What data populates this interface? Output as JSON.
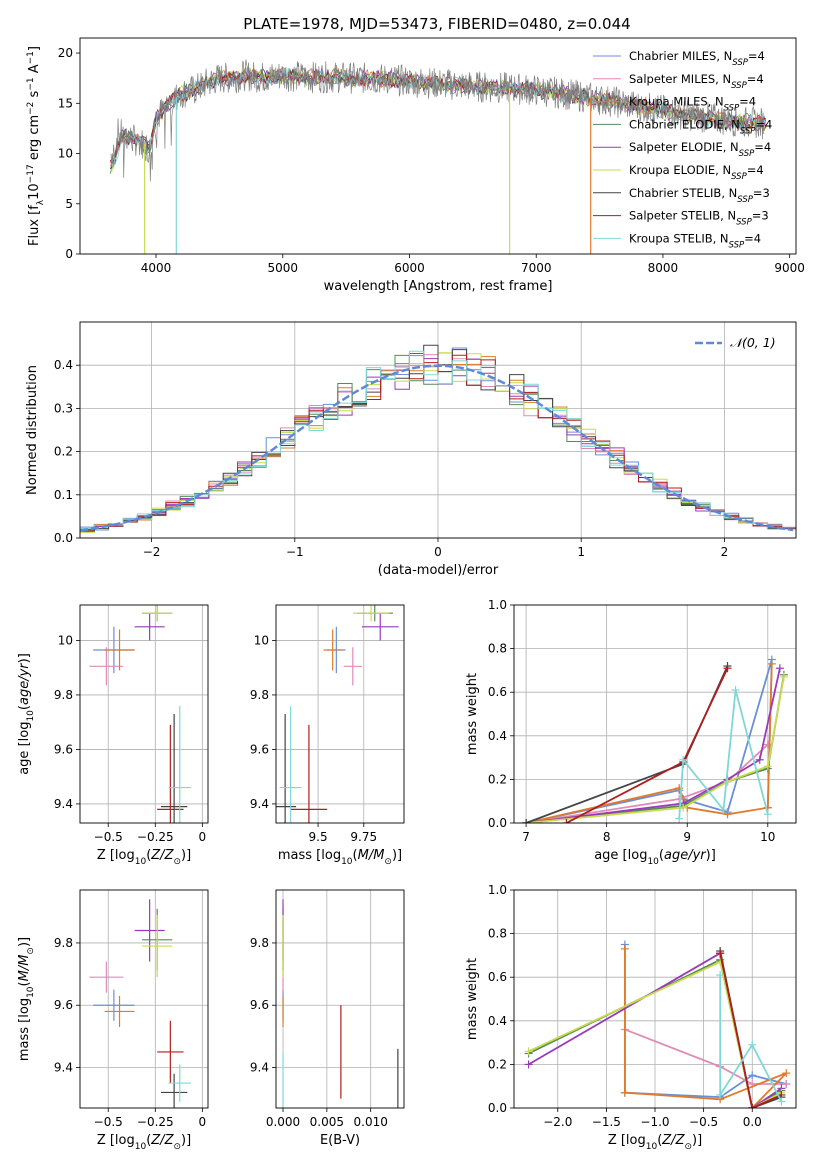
{
  "figure": {
    "title": "PLATE=1978, MJD=53473, FIBERID=0480, z=0.044"
  },
  "colors": {
    "Chabrier MILES": "#6a8fd8",
    "Salpeter MILES": "#e08bb6",
    "Kroupa MILES": "#e07b2c",
    "Chabrier ELODIE": "#5a8a5a",
    "Salpeter ELODIE": "#9a3ab8",
    "Kroupa ELODIE": "#c8dc4e",
    "Chabrier STELIB": "#444444",
    "Salpeter STELIB": "#b01e1e",
    "Kroupa STELIB": "#7fd8d8",
    "data": "#808080",
    "normal": "#5b8bd8"
  },
  "chart_data": [
    {
      "id": "spectrum",
      "type": "line",
      "title": "PLATE=1978, MJD=53473, FIBERID=0480, z=0.044",
      "xlabel": "wavelength [Angstrom, rest frame]",
      "ylabel": "Flux [f_λ 10^-17 erg cm^-2 s^-1 A^-1]",
      "xlim": [
        3400,
        9050
      ],
      "ylim": [
        0,
        21.5
      ],
      "xticks": [
        4000,
        5000,
        6000,
        7000,
        8000,
        9000
      ],
      "yticks": [
        0,
        5,
        10,
        15,
        20
      ],
      "legend_position": "top-right",
      "x": [
        3650,
        3700,
        3800,
        3900,
        3950,
        4000,
        4100,
        4200,
        4300,
        4400,
        4500,
        4600,
        4700,
        4800,
        4900,
        5000,
        5200,
        5400,
        5600,
        5800,
        6000,
        6200,
        6400,
        6600,
        6800,
        7000,
        7200,
        7400,
        7600,
        7800,
        8000,
        8200,
        8400,
        8600,
        8800
      ],
      "y": [
        10.0,
        12.0,
        11.5,
        11.0,
        10.5,
        13.5,
        15.0,
        16.0,
        16.3,
        17.0,
        17.5,
        17.5,
        17.8,
        17.6,
        17.6,
        17.8,
        17.6,
        17.6,
        17.5,
        17.4,
        17.2,
        17.0,
        16.8,
        16.6,
        16.5,
        16.3,
        16.0,
        15.6,
        15.2,
        14.7,
        14.3,
        13.8,
        13.5,
        13.2,
        13.0
      ],
      "series": [
        {
          "name": "Chabrier MILES, N_SSP=4",
          "label_main": "Chabrier MILES, N",
          "label_sub": "SSP",
          "label_tail": "=4"
        },
        {
          "name": "Salpeter MILES, N_SSP=4",
          "label_main": "Salpeter MILES, N",
          "label_sub": "SSP",
          "label_tail": "=4"
        },
        {
          "name": "Kroupa MILES, N_SSP=4",
          "label_main": "Kroupa MILES, N",
          "label_sub": "SSP",
          "label_tail": "=4"
        },
        {
          "name": "Chabrier ELODIE, N_SSP=4",
          "label_main": "Chabrier ELODIE, N",
          "label_sub": "SSP",
          "label_tail": "=4"
        },
        {
          "name": "Salpeter ELODIE, N_SSP=4",
          "label_main": "Salpeter ELODIE, N",
          "label_sub": "SSP",
          "label_tail": "=4"
        },
        {
          "name": "Kroupa ELODIE, N_SSP=4",
          "label_main": "Kroupa ELODIE, N",
          "label_sub": "SSP",
          "label_tail": "=4"
        },
        {
          "name": "Chabrier STELIB, N_SSP=3",
          "label_main": "Chabrier STELIB, N",
          "label_sub": "SSP",
          "label_tail": "=3"
        },
        {
          "name": "Salpeter STELIB, N_SSP=3",
          "label_main": "Salpeter STELIB, N",
          "label_sub": "SSP",
          "label_tail": "=3"
        },
        {
          "name": "Kroupa STELIB, N_SSP=4",
          "label_main": "Kroupa STELIB, N",
          "label_sub": "SSP",
          "label_tail": "=4"
        }
      ],
      "drops": [
        {
          "model": "Kroupa ELODIE",
          "x": 3910
        },
        {
          "model": "Kroupa STELIB",
          "x": 4160
        },
        {
          "model": "Kroupa ELODIE",
          "x": 6790
        },
        {
          "model": "Kroupa MILES",
          "x": 7430
        }
      ]
    },
    {
      "id": "residuals",
      "type": "line",
      "xlabel": "(data-model)/error",
      "ylabel": "Normed distribution",
      "xlim": [
        -2.5,
        2.5
      ],
      "ylim": [
        0,
        0.5
      ],
      "xticks": [
        -2,
        -1,
        0,
        1,
        2
      ],
      "yticks": [
        0.0,
        0.1,
        0.2,
        0.3,
        0.4
      ],
      "legend": "𝒩(0, 1)",
      "legend_position": "top-right",
      "grid": true,
      "series": [
        {
          "name": "histograms",
          "bin_width": 0.1,
          "approx_shape": "normal(0,1)"
        }
      ]
    },
    {
      "id": "Z_age",
      "type": "scatter",
      "xlabel": "Z [log10(Z/Z⊙)]",
      "ylabel": "age [log10(age/yr)]",
      "xlim": [
        -0.65,
        0.03
      ],
      "ylim": [
        9.33,
        10.13
      ],
      "xticks": [
        -0.5,
        -0.25,
        0.0
      ],
      "yticks": [
        9.4,
        9.6,
        9.8,
        10.0
      ],
      "points": [
        {
          "model": "Chabrier MILES",
          "x": -0.47,
          "y": 9.965,
          "xerr": 0.11,
          "yerr": 0.085
        },
        {
          "model": "Salpeter MILES",
          "x": -0.51,
          "y": 9.905,
          "xerr": 0.09,
          "yerr": 0.07
        },
        {
          "model": "Kroupa MILES",
          "x": -0.44,
          "y": 9.965,
          "xerr": 0.08,
          "yerr": 0.075
        },
        {
          "model": "Chabrier ELODIE",
          "x": -0.24,
          "y": 10.1,
          "xerr": 0.08,
          "yerr": 0.03
        },
        {
          "model": "Salpeter ELODIE",
          "x": -0.28,
          "y": 10.05,
          "xerr": 0.08,
          "yerr": 0.05
        },
        {
          "model": "Kroupa ELODIE",
          "x": -0.24,
          "y": 10.1,
          "xerr": 0.08,
          "yerr": 0.03
        },
        {
          "model": "Chabrier STELIB",
          "x": -0.15,
          "y": 9.39,
          "xerr": 0.07,
          "yerr": 0.34
        },
        {
          "model": "Salpeter STELIB",
          "x": -0.17,
          "y": 9.38,
          "xerr": 0.07,
          "yerr": 0.31
        },
        {
          "model": "Kroupa STELIB",
          "x": -0.12,
          "y": 9.46,
          "xerr": 0.06,
          "yerr": 0.3
        }
      ]
    },
    {
      "id": "mass_age",
      "type": "scatter",
      "xlabel": "mass [log10(M/M⊙)]",
      "ylabel": "",
      "xlim": [
        9.27,
        9.97
      ],
      "ylim": [
        9.33,
        10.13
      ],
      "xticks": [
        9.5,
        9.75
      ],
      "yticks": [
        9.4,
        9.6,
        9.8,
        10.0
      ],
      "points": [
        {
          "model": "Chabrier MILES",
          "x": 9.6,
          "y": 9.965,
          "xerr": 0.05,
          "yerr": 0.085
        },
        {
          "model": "Salpeter MILES",
          "x": 9.69,
          "y": 9.905,
          "xerr": 0.05,
          "yerr": 0.07
        },
        {
          "model": "Kroupa MILES",
          "x": 9.58,
          "y": 9.965,
          "xerr": 0.05,
          "yerr": 0.075
        },
        {
          "model": "Chabrier ELODIE",
          "x": 9.81,
          "y": 10.1,
          "xerr": 0.1,
          "yerr": 0.03
        },
        {
          "model": "Salpeter ELODIE",
          "x": 9.84,
          "y": 10.05,
          "xerr": 0.1,
          "yerr": 0.05
        },
        {
          "model": "Kroupa ELODIE",
          "x": 9.79,
          "y": 10.1,
          "xerr": 0.1,
          "yerr": 0.03
        },
        {
          "model": "Chabrier STELIB",
          "x": 9.32,
          "y": 9.39,
          "xerr": 0.06,
          "yerr": 0.34
        },
        {
          "model": "Salpeter STELIB",
          "x": 9.45,
          "y": 9.38,
          "xerr": 0.1,
          "yerr": 0.31
        },
        {
          "model": "Kroupa STELIB",
          "x": 9.35,
          "y": 9.46,
          "xerr": 0.06,
          "yerr": 0.3
        }
      ]
    },
    {
      "id": "mw_age",
      "type": "line",
      "xlabel": "age [log10(age/yr)]",
      "ylabel": "mass weight",
      "xlim": [
        6.85,
        10.35
      ],
      "ylim": [
        0,
        1.0
      ],
      "xticks": [
        7,
        8,
        9,
        10
      ],
      "yticks": [
        0.0,
        0.2,
        0.4,
        0.6,
        0.8,
        1.0
      ],
      "grid": true,
      "series": [
        {
          "model": "Chabrier MILES",
          "x": [
            7.0,
            8.9,
            8.95,
            9.5,
            10.05,
            10.0
          ],
          "y": [
            0.0,
            0.15,
            0.11,
            0.05,
            0.75,
            0.07
          ]
        },
        {
          "model": "Salpeter MILES",
          "x": [
            7.0,
            8.9,
            9.5,
            10.0
          ],
          "y": [
            0.0,
            0.11,
            0.19,
            0.36
          ]
        },
        {
          "model": "Kroupa MILES",
          "x": [
            7.0,
            8.9,
            9.0,
            9.5,
            10.0,
            10.05
          ],
          "y": [
            0.0,
            0.16,
            0.07,
            0.04,
            0.07,
            0.73
          ]
        },
        {
          "model": "Chabrier ELODIE",
          "x": [
            7.0,
            8.95,
            9.5,
            10.0,
            10.2
          ],
          "y": [
            0.0,
            0.08,
            0.19,
            0.25,
            0.68
          ]
        },
        {
          "model": "Salpeter ELODIE",
          "x": [
            7.0,
            8.95,
            9.5,
            9.9,
            10.15
          ],
          "y": [
            0.0,
            0.09,
            0.2,
            0.29,
            0.71
          ]
        },
        {
          "model": "Kroupa ELODIE",
          "x": [
            7.0,
            8.95,
            9.5,
            10.0,
            10.2
          ],
          "y": [
            0.0,
            0.07,
            0.19,
            0.26,
            0.67
          ]
        },
        {
          "model": "Chabrier STELIB",
          "x": [
            7.0,
            8.95,
            9.5
          ],
          "y": [
            0.0,
            0.27,
            0.72
          ]
        },
        {
          "model": "Salpeter STELIB",
          "x": [
            7.5,
            8.95,
            9.5
          ],
          "y": [
            0.0,
            0.28,
            0.71
          ]
        },
        {
          "model": "Kroupa STELIB",
          "x": [
            8.9,
            8.95,
            9.45,
            9.6,
            10.0
          ],
          "y": [
            0.02,
            0.29,
            0.06,
            0.61,
            0.04
          ]
        }
      ]
    },
    {
      "id": "Z_mass",
      "type": "scatter",
      "xlabel": "Z [log10(Z/Z⊙)]",
      "ylabel": "mass [log10(M/M⊙)]",
      "xlim": [
        -0.65,
        0.03
      ],
      "ylim": [
        9.27,
        9.97
      ],
      "xticks": [
        -0.5,
        -0.25,
        0.0
      ],
      "yticks": [
        9.4,
        9.6,
        9.8
      ],
      "points": [
        {
          "model": "Chabrier MILES",
          "x": -0.47,
          "y": 9.6,
          "xerr": 0.11,
          "yerr": 0.05
        },
        {
          "model": "Salpeter MILES",
          "x": -0.51,
          "y": 9.69,
          "xerr": 0.09,
          "yerr": 0.05
        },
        {
          "model": "Kroupa MILES",
          "x": -0.44,
          "y": 9.58,
          "xerr": 0.08,
          "yerr": 0.05
        },
        {
          "model": "Chabrier ELODIE",
          "x": -0.24,
          "y": 9.81,
          "xerr": 0.08,
          "yerr": 0.1
        },
        {
          "model": "Salpeter ELODIE",
          "x": -0.28,
          "y": 9.84,
          "xerr": 0.08,
          "yerr": 0.1
        },
        {
          "model": "Kroupa ELODIE",
          "x": -0.24,
          "y": 9.79,
          "xerr": 0.08,
          "yerr": 0.1
        },
        {
          "model": "Chabrier STELIB",
          "x": -0.15,
          "y": 9.32,
          "xerr": 0.07,
          "yerr": 0.06
        },
        {
          "model": "Salpeter STELIB",
          "x": -0.17,
          "y": 9.45,
          "xerr": 0.07,
          "yerr": 0.1
        },
        {
          "model": "Kroupa STELIB",
          "x": -0.12,
          "y": 9.35,
          "xerr": 0.06,
          "yerr": 0.06
        }
      ]
    },
    {
      "id": "ebv_mass",
      "type": "scatter",
      "xlabel": "E(B-V)",
      "ylabel": "",
      "xlim": [
        -0.0008,
        0.0138
      ],
      "ylim": [
        9.27,
        9.97
      ],
      "xticks": [
        0.0,
        0.005,
        0.01
      ],
      "xtick_labels": [
        "0.000",
        "0.005",
        "0.010"
      ],
      "yticks": [
        9.4,
        9.6,
        9.8
      ],
      "points": [
        {
          "model": "Chabrier MILES",
          "x": 0.0,
          "y": 9.6,
          "xerr": 0.0,
          "yerr": 0.05
        },
        {
          "model": "Salpeter MILES",
          "x": 0.0,
          "y": 9.69,
          "xerr": 0.0,
          "yerr": 0.05
        },
        {
          "model": "Kroupa MILES",
          "x": 0.0,
          "y": 9.58,
          "xerr": 0.0,
          "yerr": 0.05
        },
        {
          "model": "Chabrier ELODIE",
          "x": 0.0,
          "y": 9.81,
          "xerr": 0.0,
          "yerr": 0.1
        },
        {
          "model": "Salpeter ELODIE",
          "x": 0.0,
          "y": 9.84,
          "xerr": 0.0,
          "yerr": 0.1
        },
        {
          "model": "Kroupa ELODIE",
          "x": 0.0,
          "y": 9.79,
          "xerr": 0.0,
          "yerr": 0.1
        },
        {
          "model": "Chabrier STELIB",
          "x": 0.0131,
          "y": 9.32,
          "xerr": 0.0,
          "yerr": 0.14
        },
        {
          "model": "Salpeter STELIB",
          "x": 0.0066,
          "y": 9.45,
          "xerr": 0.0,
          "yerr": 0.15
        },
        {
          "model": "Kroupa STELIB",
          "x": 0.0,
          "y": 9.35,
          "xerr": 0.0,
          "yerr": 0.1
        }
      ]
    },
    {
      "id": "mw_Z",
      "type": "line",
      "xlabel": "Z [log10(Z/Z⊙)]",
      "ylabel": "mass weight",
      "xlim": [
        -2.45,
        0.45
      ],
      "ylim": [
        0,
        1.0
      ],
      "xticks": [
        -2.0,
        -1.5,
        -1.0,
        -0.5,
        0.0
      ],
      "yticks": [
        0.0,
        0.2,
        0.4,
        0.6,
        0.8,
        1.0
      ],
      "grid": true,
      "series": [
        {
          "model": "Chabrier MILES",
          "x": [
            -1.31,
            -1.31,
            -0.33,
            0.0,
            0.35
          ],
          "y": [
            0.75,
            0.07,
            0.05,
            0.15,
            0.11
          ]
        },
        {
          "model": "Salpeter MILES",
          "x": [
            -1.31,
            -0.33,
            0.0,
            0.35
          ],
          "y": [
            0.36,
            0.19,
            0.11,
            0.11
          ]
        },
        {
          "model": "Kroupa MILES",
          "x": [
            -1.31,
            -1.31,
            -0.33,
            0.35,
            0.0
          ],
          "y": [
            0.73,
            0.07,
            0.04,
            0.16,
            0.0
          ]
        },
        {
          "model": "Chabrier ELODIE",
          "x": [
            -2.3,
            -0.33,
            0.0,
            0.3
          ],
          "y": [
            0.25,
            0.68,
            0.0,
            0.08
          ]
        },
        {
          "model": "Salpeter ELODIE",
          "x": [
            -2.3,
            -0.33,
            0.0,
            0.3
          ],
          "y": [
            0.2,
            0.71,
            0.0,
            0.09
          ]
        },
        {
          "model": "Kroupa ELODIE",
          "x": [
            -2.3,
            -0.33,
            0.0,
            0.3
          ],
          "y": [
            0.26,
            0.67,
            0.0,
            0.07
          ]
        },
        {
          "model": "Chabrier STELIB",
          "x": [
            -0.33,
            0.0,
            0.3
          ],
          "y": [
            0.72,
            0.0,
            0.05
          ]
        },
        {
          "model": "Salpeter STELIB",
          "x": [
            -0.33,
            0.0,
            0.3
          ],
          "y": [
            0.71,
            0.0,
            0.06
          ]
        },
        {
          "model": "Kroupa STELIB",
          "x": [
            -0.33,
            -0.33,
            0.0,
            0.3
          ],
          "y": [
            0.61,
            0.06,
            0.29,
            0.03
          ]
        }
      ]
    }
  ]
}
